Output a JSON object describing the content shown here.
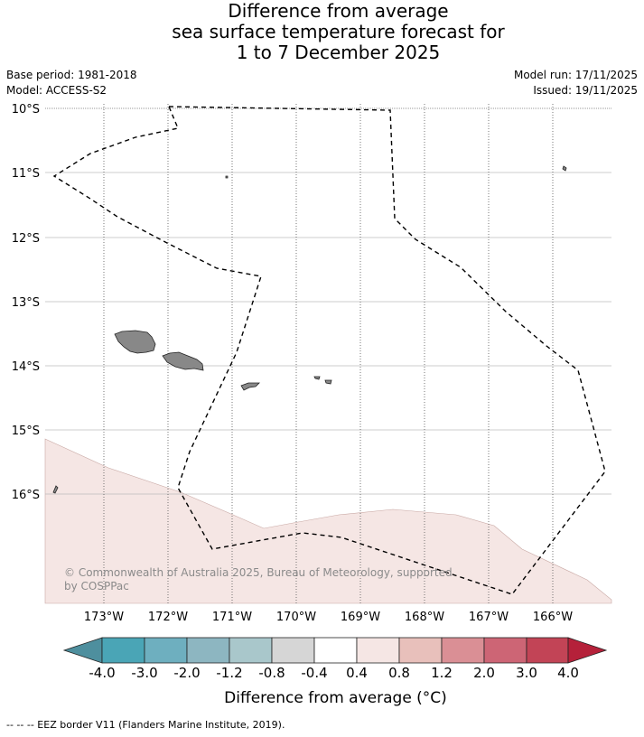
{
  "title": {
    "line1": "Difference from average",
    "line2": "sea surface temperature forecast for",
    "line3": "1 to 7 December 2025"
  },
  "meta": {
    "base_period": "Base period: 1981-2018",
    "model": "Model: ACCESS-S2",
    "model_run": "Model run: 17/11/2025",
    "issued": "Issued: 19/11/2025"
  },
  "map": {
    "lat_labels": [
      "10°S",
      "11°S",
      "12°S",
      "13°S",
      "14°S",
      "15°S",
      "16°S"
    ],
    "lon_labels": [
      "173°W",
      "172°W",
      "171°W",
      "170°W",
      "169°W",
      "168°W",
      "167°W",
      "166°W"
    ],
    "copyright_line1": "© Commonwealth of Australia 2025, Bureau of Meteorology, supported",
    "copyright_line2": "by COSPPac",
    "colors": {
      "land": "#888888",
      "anomaly_0_4_to_0_8": "#f5e6e4",
      "grid": "#999999",
      "eez": "#000000"
    }
  },
  "colorbar": {
    "tick_labels": [
      "-4.0",
      "-3.0",
      "-2.0",
      "-1.2",
      "-0.8",
      "-0.4",
      "0.4",
      "0.8",
      "1.2",
      "2.0",
      "3.0",
      "4.0"
    ],
    "colors": [
      "#4e8f9e",
      "#4aa5b6",
      "#6eafbf",
      "#8db6c1",
      "#a9c7cb",
      "#d6d6d6",
      "#ffffff",
      "#f5e6e4",
      "#e8c0bb",
      "#da8f95",
      "#cd6575",
      "#c24456",
      "#b5213a"
    ],
    "title": "Difference from average (°C)"
  },
  "footnote": "--  --  -- EEZ border V11 (Flanders Marine Institute, 2019)."
}
